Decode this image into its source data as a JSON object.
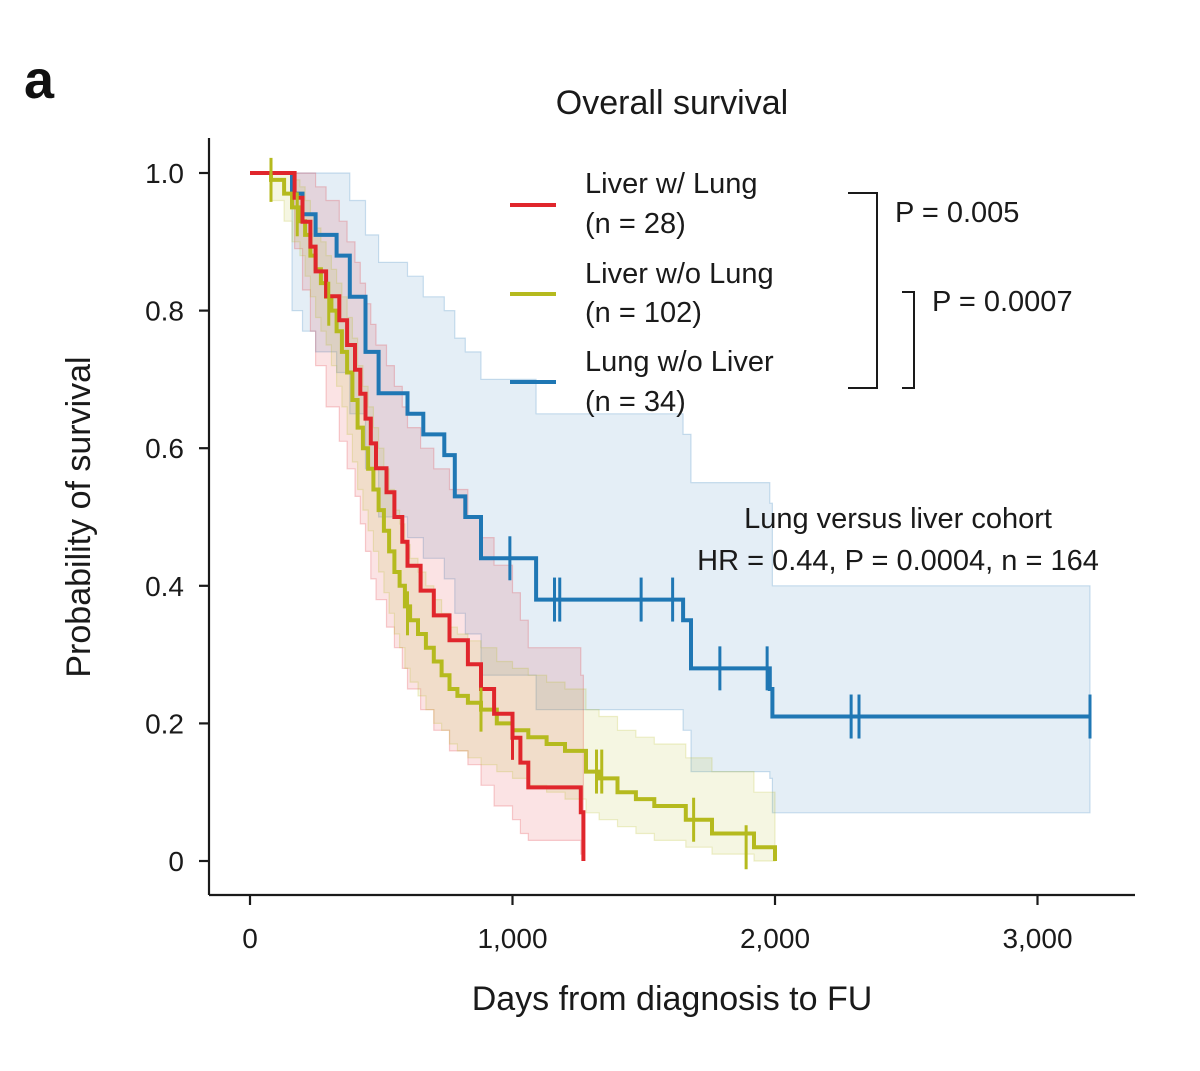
{
  "panel_label": "a",
  "colors": {
    "liver_with_lung": "#e0262c",
    "liver_without_lung": "#b5ba1e",
    "lung_without_liver": "#1f77b4"
  },
  "chart_data": {
    "type": "line",
    "subtype": "kaplan-meier",
    "title": "Overall survival",
    "xlabel": "Days from diagnosis to FU",
    "ylabel": "Probability of survival",
    "xlim": [
      -150,
      3420
    ],
    "ylim": [
      -0.05,
      1.05
    ],
    "xticks": [
      0,
      1000,
      2000,
      3000
    ],
    "xtick_labels": [
      "0",
      "1,000",
      "2,000",
      "3,000"
    ],
    "yticks": [
      0,
      0.2,
      0.4,
      0.6,
      0.8,
      1.0
    ],
    "ytick_labels": [
      "0",
      "0.2",
      "0.4",
      "0.6",
      "0.8",
      "1.0"
    ],
    "grid": false,
    "legend_position": "top-right",
    "series": [
      {
        "key": "liver_with_lung",
        "name": "Liver w/ Lung",
        "n_label": "(n = 28)",
        "x": [
          0,
          150,
          170,
          200,
          230,
          250,
          290,
          340,
          370,
          400,
          420,
          440,
          460,
          480,
          520,
          550,
          580,
          600,
          650,
          700,
          760,
          830,
          880,
          930,
          1000,
          1030,
          1060,
          1260,
          1270
        ],
        "y": [
          1.0,
          1.0,
          0.964,
          0.929,
          0.893,
          0.857,
          0.821,
          0.786,
          0.75,
          0.714,
          0.679,
          0.643,
          0.607,
          0.571,
          0.536,
          0.5,
          0.464,
          0.429,
          0.393,
          0.357,
          0.321,
          0.286,
          0.25,
          0.214,
          0.179,
          0.143,
          0.107,
          0.071,
          0.0
        ],
        "censor_x": [
          1000
        ],
        "censor_y": [
          0.179
        ],
        "ci_upper": [
          1.0,
          1.0,
          1.0,
          1.0,
          1.0,
          0.98,
          0.96,
          0.93,
          0.9,
          0.87,
          0.84,
          0.81,
          0.78,
          0.75,
          0.72,
          0.69,
          0.66,
          0.63,
          0.6,
          0.57,
          0.54,
          0.5,
          0.47,
          0.43,
          0.39,
          0.35,
          0.31,
          0.27,
          0.27
        ],
        "ci_lower": [
          1.0,
          1.0,
          0.89,
          0.83,
          0.77,
          0.72,
          0.66,
          0.61,
          0.57,
          0.53,
          0.49,
          0.45,
          0.41,
          0.38,
          0.34,
          0.31,
          0.28,
          0.25,
          0.22,
          0.19,
          0.16,
          0.14,
          0.11,
          0.08,
          0.06,
          0.04,
          0.03,
          0.01,
          0.0
        ]
      },
      {
        "key": "liver_without_lung",
        "name": "Liver w/o Lung",
        "n_label": "(n = 102)",
        "x": [
          0,
          80,
          130,
          160,
          190,
          210,
          230,
          250,
          270,
          290,
          310,
          330,
          350,
          370,
          390,
          410,
          430,
          450,
          470,
          490,
          510,
          530,
          550,
          570,
          590,
          610,
          640,
          670,
          700,
          730,
          760,
          790,
          830,
          880,
          940,
          1000,
          1060,
          1130,
          1200,
          1280,
          1330,
          1400,
          1470,
          1540,
          1660,
          1760,
          1920,
          2000
        ],
        "y": [
          1.0,
          0.99,
          0.97,
          0.95,
          0.93,
          0.91,
          0.88,
          0.86,
          0.84,
          0.82,
          0.8,
          0.77,
          0.74,
          0.71,
          0.67,
          0.63,
          0.6,
          0.57,
          0.54,
          0.51,
          0.48,
          0.45,
          0.42,
          0.4,
          0.37,
          0.35,
          0.33,
          0.31,
          0.29,
          0.27,
          0.25,
          0.24,
          0.23,
          0.22,
          0.2,
          0.19,
          0.18,
          0.17,
          0.16,
          0.13,
          0.12,
          0.1,
          0.09,
          0.08,
          0.06,
          0.04,
          0.02,
          0.0
        ],
        "censor_x": [
          80,
          180,
          300,
          600,
          880,
          1320,
          1340,
          1690,
          1890
        ],
        "censor_y": [
          0.99,
          0.94,
          0.81,
          0.36,
          0.22,
          0.13,
          0.13,
          0.06,
          0.02
        ],
        "ci_upper": [
          1.0,
          1.0,
          1.0,
          0.99,
          0.98,
          0.96,
          0.94,
          0.92,
          0.9,
          0.88,
          0.86,
          0.84,
          0.82,
          0.79,
          0.76,
          0.72,
          0.69,
          0.66,
          0.63,
          0.6,
          0.57,
          0.54,
          0.51,
          0.49,
          0.46,
          0.44,
          0.42,
          0.4,
          0.38,
          0.36,
          0.34,
          0.33,
          0.32,
          0.31,
          0.29,
          0.28,
          0.27,
          0.26,
          0.25,
          0.22,
          0.21,
          0.19,
          0.18,
          0.17,
          0.15,
          0.13,
          0.1,
          0.1
        ],
        "ci_lower": [
          1.0,
          0.96,
          0.93,
          0.9,
          0.88,
          0.85,
          0.82,
          0.79,
          0.77,
          0.75,
          0.72,
          0.69,
          0.66,
          0.62,
          0.58,
          0.54,
          0.51,
          0.48,
          0.45,
          0.42,
          0.39,
          0.36,
          0.33,
          0.31,
          0.28,
          0.26,
          0.24,
          0.22,
          0.2,
          0.19,
          0.17,
          0.16,
          0.15,
          0.14,
          0.13,
          0.12,
          0.11,
          0.1,
          0.09,
          0.07,
          0.06,
          0.05,
          0.04,
          0.03,
          0.02,
          0.01,
          0.0,
          0.0
        ]
      },
      {
        "key": "lung_without_liver",
        "name": "Lung w/o Liver",
        "n_label": "(n = 34)",
        "x": [
          0,
          160,
          200,
          250,
          330,
          380,
          440,
          490,
          600,
          660,
          740,
          780,
          820,
          880,
          1090,
          1650,
          1680,
          1980,
          1990,
          3200
        ],
        "y": [
          1.0,
          0.97,
          0.94,
          0.91,
          0.88,
          0.82,
          0.74,
          0.68,
          0.65,
          0.62,
          0.59,
          0.53,
          0.5,
          0.44,
          0.38,
          0.35,
          0.28,
          0.25,
          0.21,
          0.21
        ],
        "censor_x": [
          990,
          1160,
          1180,
          1490,
          1610,
          1790,
          1970,
          2290,
          2320,
          3200
        ],
        "censor_y": [
          0.44,
          0.38,
          0.38,
          0.38,
          0.38,
          0.28,
          0.28,
          0.21,
          0.21,
          0.21
        ],
        "ci_upper": [
          1.0,
          1.0,
          1.0,
          1.0,
          1.0,
          0.96,
          0.91,
          0.87,
          0.85,
          0.82,
          0.8,
          0.76,
          0.74,
          0.7,
          0.65,
          0.62,
          0.55,
          0.52,
          0.4,
          0.4
        ],
        "ci_lower": [
          1.0,
          0.8,
          0.77,
          0.74,
          0.71,
          0.65,
          0.57,
          0.5,
          0.47,
          0.44,
          0.41,
          0.36,
          0.33,
          0.27,
          0.22,
          0.19,
          0.13,
          0.12,
          0.07,
          0.07
        ]
      }
    ],
    "pvalue_brackets": [
      {
        "label": "P = 0.005",
        "from_series": "liver_with_lung",
        "to_series": "lung_without_liver"
      },
      {
        "label": "P = 0.0007",
        "from_series": "liver_without_lung",
        "to_series": "lung_without_liver"
      }
    ],
    "annotation": {
      "line1": "Lung versus liver cohort",
      "line2": "HR = 0.44,  P = 0.0004, n = 164"
    }
  }
}
